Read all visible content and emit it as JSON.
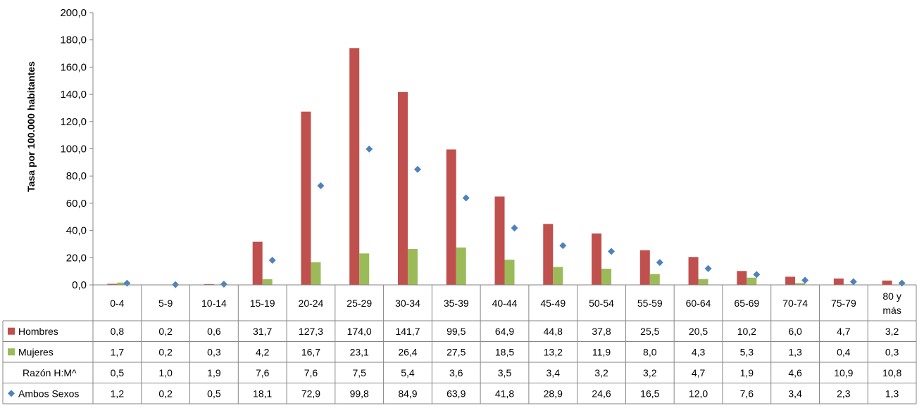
{
  "chart_data": {
    "type": "bar",
    "title": "",
    "xlabel": "",
    "ylabel": "Tasa por 100.000 habitantes",
    "ylim": [
      0,
      200
    ],
    "yticks": [
      "0,0",
      "20,0",
      "40,0",
      "60,0",
      "80,0",
      "100,0",
      "120,0",
      "140,0",
      "160,0",
      "180,0",
      "200,0"
    ],
    "categories": [
      "0-4",
      "5-9",
      "10-14",
      "15-19",
      "20-24",
      "25-29",
      "30-34",
      "35-39",
      "40-44",
      "45-49",
      "50-54",
      "55-59",
      "60-64",
      "65-69",
      "70-74",
      "75-79",
      "80 y más"
    ],
    "series": [
      {
        "name": "Hombres",
        "kind": "bar",
        "color": "#c0504d",
        "values": [
          0.8,
          0.2,
          0.6,
          31.7,
          127.3,
          174.0,
          141.7,
          99.5,
          64.9,
          44.8,
          37.8,
          25.5,
          20.5,
          10.2,
          6.0,
          4.7,
          3.2
        ],
        "labels": [
          "0,8",
          "0,2",
          "0,6",
          "31,7",
          "127,3",
          "174,0",
          "141,7",
          "99,5",
          "64,9",
          "44,8",
          "37,8",
          "25,5",
          "20,5",
          "10,2",
          "6,0",
          "4,7",
          "3,2"
        ]
      },
      {
        "name": "Mujeres",
        "kind": "bar",
        "color": "#9bbb59",
        "values": [
          1.7,
          0.2,
          0.3,
          4.2,
          16.7,
          23.1,
          26.4,
          27.5,
          18.5,
          13.2,
          11.9,
          8.0,
          4.3,
          5.3,
          1.3,
          0.4,
          0.3
        ],
        "labels": [
          "1,7",
          "0,2",
          "0,3",
          "4,2",
          "16,7",
          "23,1",
          "26,4",
          "27,5",
          "18,5",
          "13,2",
          "11,9",
          "8,0",
          "4,3",
          "5,3",
          "1,3",
          "0,4",
          "0,3"
        ]
      },
      {
        "name": "Razón H:M^",
        "kind": "none",
        "color": "",
        "values": [
          0.5,
          1.0,
          1.9,
          7.6,
          7.6,
          7.5,
          5.4,
          3.6,
          3.5,
          3.4,
          3.2,
          3.2,
          4.7,
          1.9,
          4.6,
          10.9,
          10.8
        ],
        "labels": [
          "0,5",
          "1,0",
          "1,9",
          "7,6",
          "7,6",
          "7,5",
          "5,4",
          "3,6",
          "3,5",
          "3,4",
          "3,2",
          "3,2",
          "4,7",
          "1,9",
          "4,6",
          "10,9",
          "10,8"
        ]
      },
      {
        "name": "Ambos Sexos",
        "kind": "marker",
        "color": "#4f81bd",
        "values": [
          1.2,
          0.2,
          0.5,
          18.1,
          72.9,
          99.8,
          84.9,
          63.9,
          41.8,
          28.9,
          24.6,
          16.5,
          12.0,
          7.6,
          3.4,
          2.3,
          1.3
        ],
        "labels": [
          "1,2",
          "0,2",
          "0,5",
          "18,1",
          "72,9",
          "99,8",
          "84,9",
          "63,9",
          "41,8",
          "28,9",
          "24,6",
          "16,5",
          "12,0",
          "7,6",
          "3,4",
          "2,3",
          "1,3"
        ]
      }
    ],
    "legend": "data-table-left",
    "grid": false
  }
}
